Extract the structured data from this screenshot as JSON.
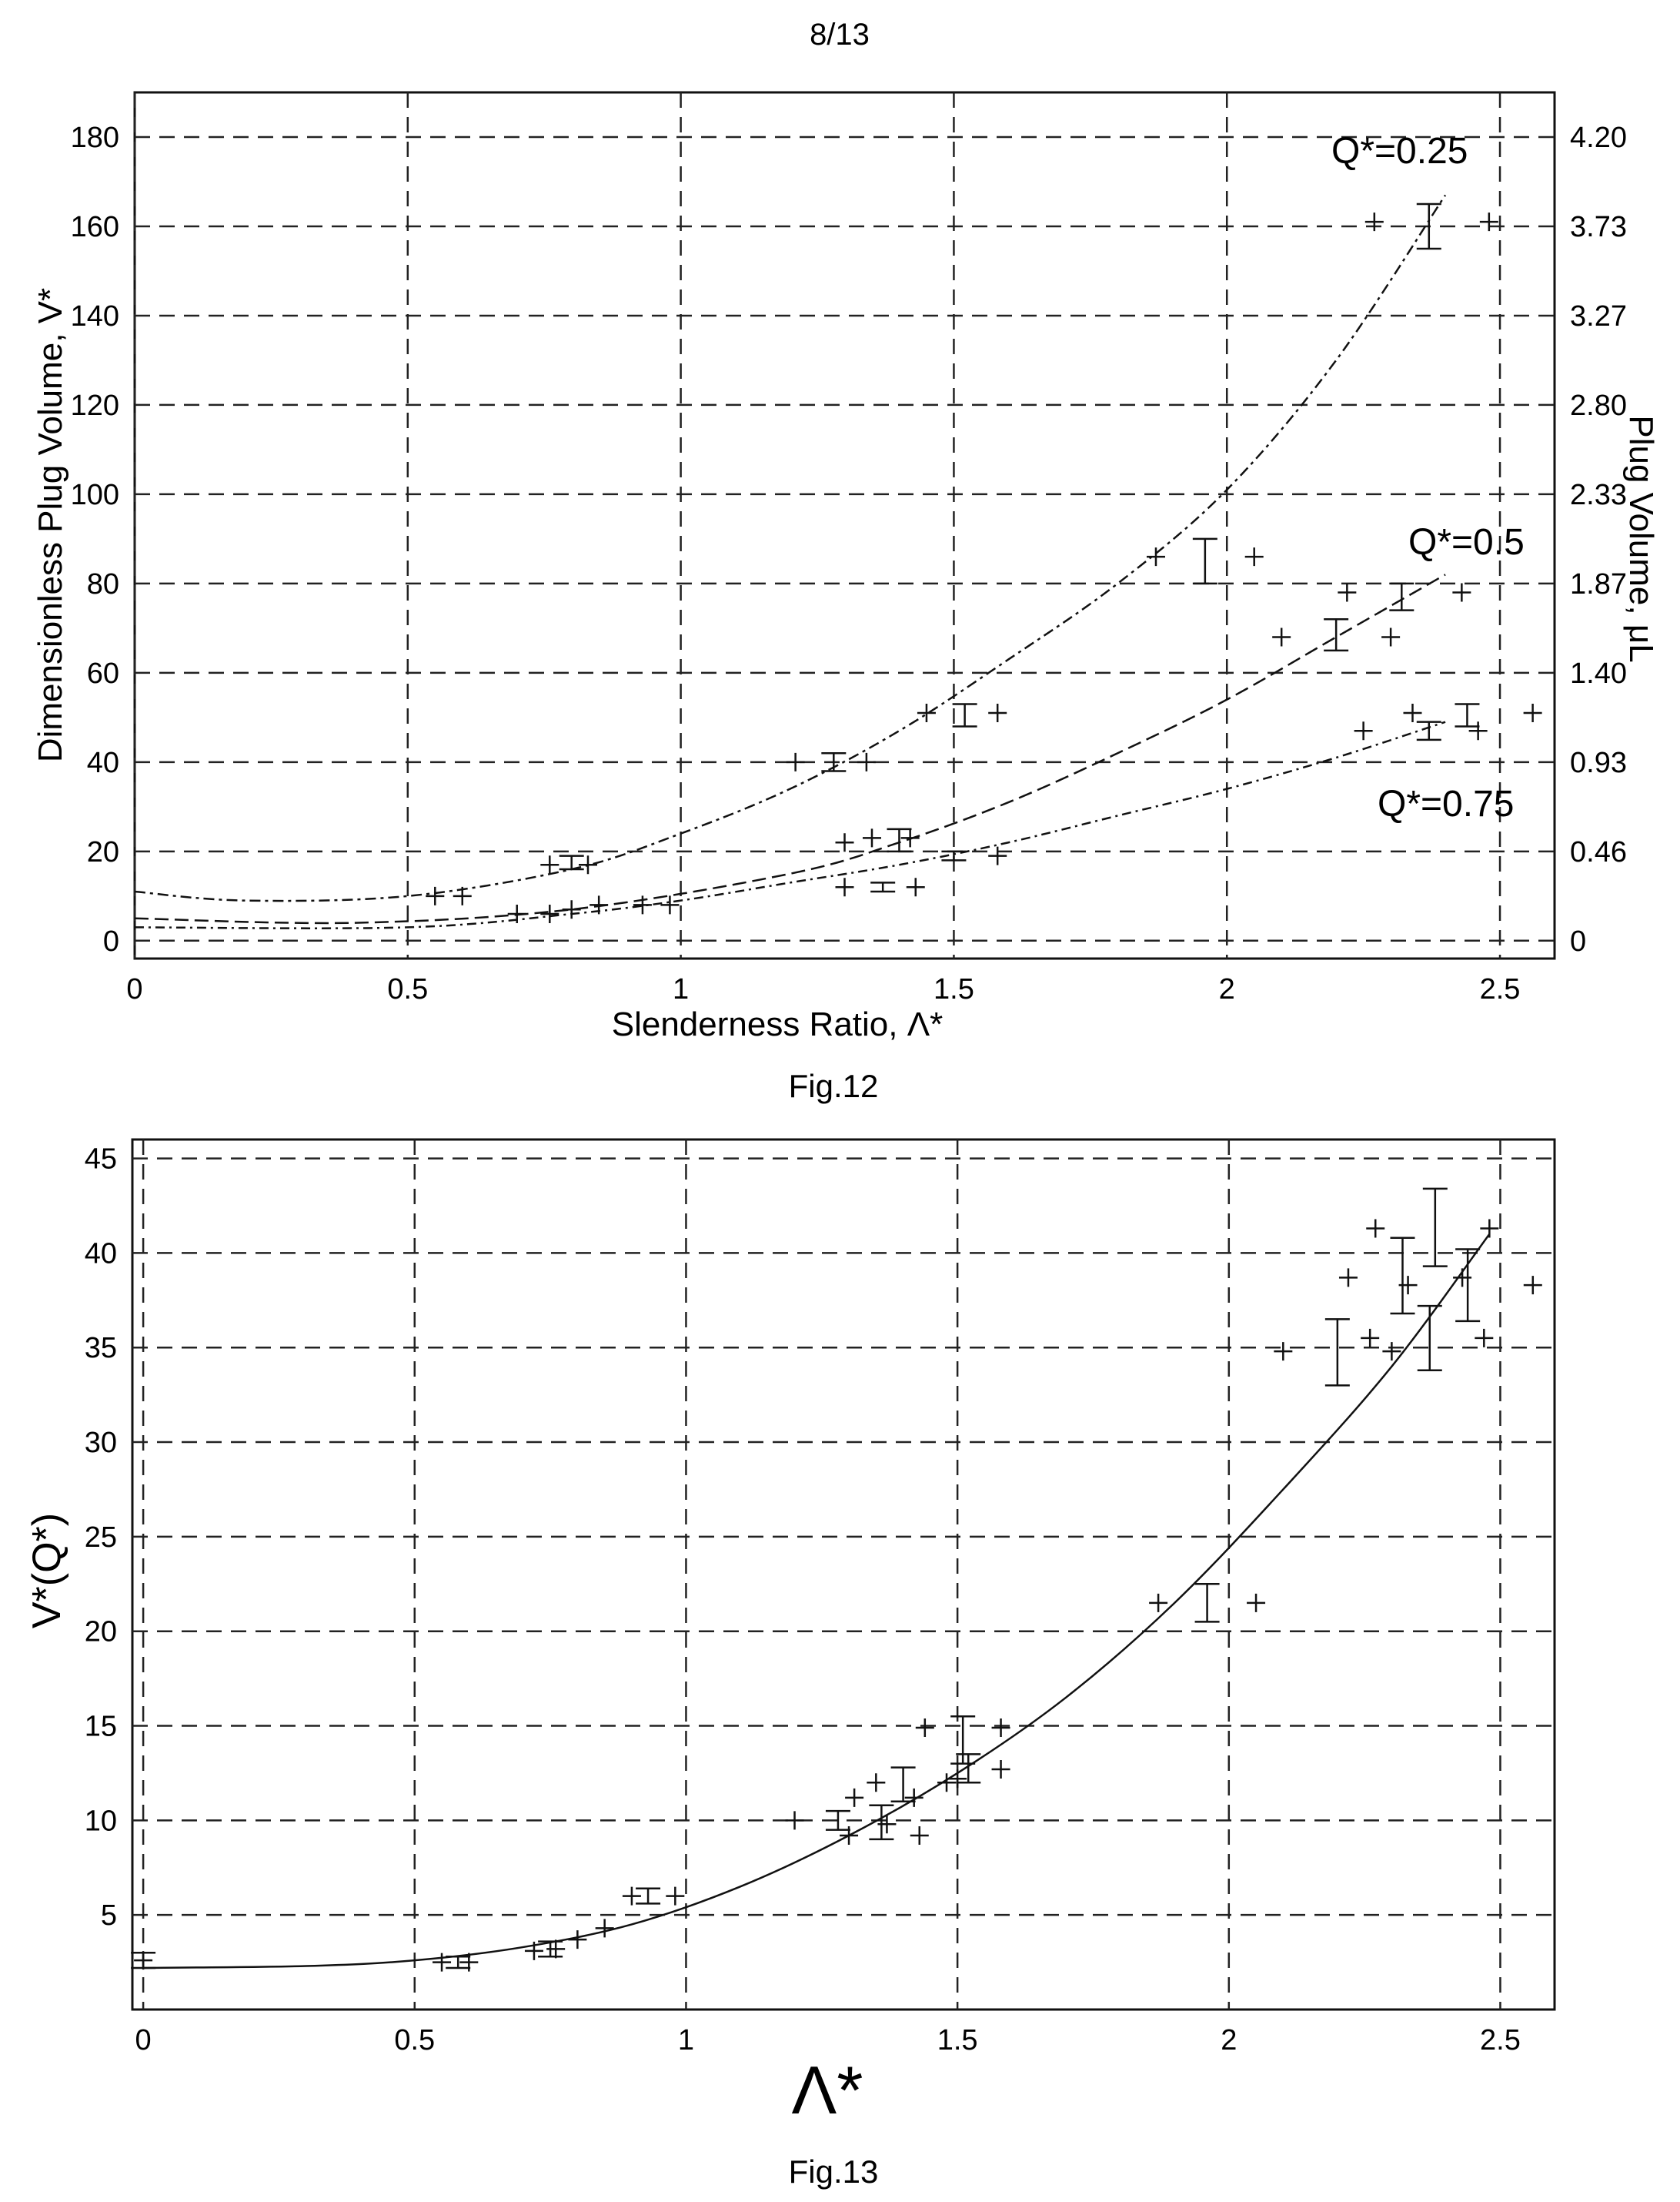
{
  "page_number": "8/13",
  "chart_data": [
    {
      "figure": "Fig.12",
      "type": "scatter",
      "title": "",
      "xlabel": "Slenderness Ratio, Λ*",
      "ylabel": "Dimensionless Plug Volume, V*",
      "y2label": "Plug Volume, μL",
      "xlim": [
        0,
        2.6
      ],
      "ylim": [
        -4,
        190
      ],
      "xticks": [
        "0",
        "0.5",
        "1",
        "1.5",
        "2",
        "2.5"
      ],
      "yticks": [
        "0",
        "20",
        "40",
        "60",
        "80",
        "100",
        "120",
        "140",
        "160",
        "180"
      ],
      "y2ticks": [
        "0",
        "0.46",
        "0.93",
        "1.40",
        "1.87",
        "2.33",
        "2.80",
        "3.27",
        "3.73",
        "4.20"
      ],
      "grid": true,
      "series": [
        {
          "name": "Q*=0.25",
          "fit": {
            "x": [
              0,
              0.2,
              0.5,
              0.8,
              1.0,
              1.2,
              1.4,
              1.6,
              1.8,
              2.0,
              2.2,
              2.4
            ],
            "y": [
              11,
              9,
              10,
              16,
              24,
              34,
              47,
              63,
              80,
              101,
              130,
              167
            ]
          },
          "points": [
            {
              "x": 0.55,
              "y": 10
            },
            {
              "x": 0.6,
              "y": 10
            },
            {
              "x": 0.76,
              "y": 17
            },
            {
              "x": 0.83,
              "y": 17
            },
            {
              "x": 1.21,
              "y": 40
            },
            {
              "x": 1.34,
              "y": 40
            },
            {
              "x": 1.45,
              "y": 51
            },
            {
              "x": 1.58,
              "y": 51
            },
            {
              "x": 1.87,
              "y": 86
            },
            {
              "x": 2.05,
              "y": 86
            },
            {
              "x": 2.27,
              "y": 161
            },
            {
              "x": 2.48,
              "y": 161
            }
          ],
          "errorbars": [
            {
              "x": 0.8,
              "low": 16,
              "high": 19
            },
            {
              "x": 1.28,
              "low": 38,
              "high": 42
            },
            {
              "x": 1.52,
              "low": 48,
              "high": 53
            },
            {
              "x": 1.96,
              "low": 80,
              "high": 90
            },
            {
              "x": 2.37,
              "low": 155,
              "high": 165
            }
          ]
        },
        {
          "name": "Q*=0.5",
          "fit": {
            "x": [
              0,
              0.4,
              0.8,
              1.2,
              1.4,
              1.6,
              1.8,
              2.0,
              2.2,
              2.4
            ],
            "y": [
              5,
              4,
              7,
              15,
              22,
              31,
              42,
              54,
              68,
              82
            ]
          },
          "points": [
            {
              "x": 0.7,
              "y": 6
            },
            {
              "x": 0.76,
              "y": 6
            },
            {
              "x": 0.8,
              "y": 7
            },
            {
              "x": 1.3,
              "y": 22
            },
            {
              "x": 1.35,
              "y": 23
            },
            {
              "x": 1.42,
              "y": 23
            },
            {
              "x": 2.1,
              "y": 68
            },
            {
              "x": 2.22,
              "y": 78
            },
            {
              "x": 2.3,
              "y": 68
            },
            {
              "x": 2.43,
              "y": 78
            }
          ],
          "errorbars": [
            {
              "x": 1.4,
              "low": 20,
              "high": 25
            },
            {
              "x": 2.2,
              "low": 65,
              "high": 72
            },
            {
              "x": 2.32,
              "low": 74,
              "high": 80
            }
          ]
        },
        {
          "name": "Q*=0.75",
          "fit": {
            "x": [
              0,
              0.5,
              0.8,
              1.0,
              1.2,
              1.4,
              1.6,
              1.8,
              2.0,
              2.2,
              2.4
            ],
            "y": [
              3,
              3,
              6,
              9,
              13,
              17,
              22,
              28,
              34,
              41,
              49
            ]
          },
          "points": [
            {
              "x": 0.85,
              "y": 8
            },
            {
              "x": 0.93,
              "y": 8
            },
            {
              "x": 0.98,
              "y": 8
            },
            {
              "x": 1.3,
              "y": 12
            },
            {
              "x": 1.43,
              "y": 12
            },
            {
              "x": 1.58,
              "y": 19
            },
            {
              "x": 2.25,
              "y": 47
            },
            {
              "x": 2.34,
              "y": 51
            },
            {
              "x": 2.46,
              "y": 47
            },
            {
              "x": 2.56,
              "y": 51
            }
          ],
          "errorbars": [
            {
              "x": 1.37,
              "low": 11,
              "high": 13
            },
            {
              "x": 1.5,
              "low": 18,
              "high": 20
            },
            {
              "x": 2.37,
              "low": 45,
              "high": 49
            },
            {
              "x": 2.44,
              "low": 48,
              "high": 53
            }
          ]
        }
      ]
    },
    {
      "figure": "Fig.13",
      "type": "scatter",
      "title": "",
      "xlabel": "Λ*",
      "ylabel": "V*(Q*)",
      "xlim": [
        -0.02,
        2.6
      ],
      "ylim": [
        0,
        46
      ],
      "xticks": [
        "0",
        "0.5",
        "1",
        "1.5",
        "2",
        "2.5"
      ],
      "yticks": [
        "5",
        "10",
        "15",
        "20",
        "25",
        "30",
        "35",
        "40",
        "45"
      ],
      "grid": true,
      "fit": {
        "x": [
          0,
          0.3,
          0.5,
          0.7,
          0.9,
          1.1,
          1.3,
          1.5,
          1.7,
          1.9,
          2.1,
          2.3,
          2.48
        ],
        "y": [
          2.2,
          2.3,
          2.6,
          3.3,
          4.5,
          6.5,
          9.2,
          12.5,
          16.5,
          21.5,
          27.5,
          34,
          41
        ]
      },
      "points": [
        {
          "x": 0,
          "y": 2.6
        },
        {
          "x": 0.55,
          "y": 2.5
        },
        {
          "x": 0.6,
          "y": 2.5
        },
        {
          "x": 0.72,
          "y": 3.1
        },
        {
          "x": 0.76,
          "y": 3.2
        },
        {
          "x": 0.8,
          "y": 3.7
        },
        {
          "x": 0.85,
          "y": 4.3
        },
        {
          "x": 0.9,
          "y": 6
        },
        {
          "x": 0.98,
          "y": 6
        },
        {
          "x": 1.2,
          "y": 10
        },
        {
          "x": 1.3,
          "y": 9.2
        },
        {
          "x": 1.31,
          "y": 11.2
        },
        {
          "x": 1.35,
          "y": 12
        },
        {
          "x": 1.37,
          "y": 9.8
        },
        {
          "x": 1.42,
          "y": 11.2
        },
        {
          "x": 1.43,
          "y": 9.2
        },
        {
          "x": 1.44,
          "y": 14.9
        },
        {
          "x": 1.48,
          "y": 12
        },
        {
          "x": 1.5,
          "y": 12.2
        },
        {
          "x": 1.58,
          "y": 12.7
        },
        {
          "x": 1.58,
          "y": 14.9
        },
        {
          "x": 1.87,
          "y": 21.5
        },
        {
          "x": 2.05,
          "y": 21.5
        },
        {
          "x": 2.1,
          "y": 34.8
        },
        {
          "x": 2.22,
          "y": 38.7
        },
        {
          "x": 2.26,
          "y": 35.5
        },
        {
          "x": 2.27,
          "y": 41.3
        },
        {
          "x": 2.3,
          "y": 34.8
        },
        {
          "x": 2.33,
          "y": 38.3
        },
        {
          "x": 2.43,
          "y": 38.7
        },
        {
          "x": 2.47,
          "y": 35.5
        },
        {
          "x": 2.48,
          "y": 41.3
        },
        {
          "x": 2.56,
          "y": 38.3
        }
      ],
      "errorbars": [
        {
          "x": 0,
          "low": 2.2,
          "high": 3.0
        },
        {
          "x": 0.58,
          "low": 2.2,
          "high": 2.8
        },
        {
          "x": 0.75,
          "low": 2.8,
          "high": 3.6
        },
        {
          "x": 0.93,
          "low": 5.6,
          "high": 6.4
        },
        {
          "x": 1.28,
          "low": 9.5,
          "high": 10.5
        },
        {
          "x": 1.36,
          "low": 9.0,
          "high": 10.8
        },
        {
          "x": 1.4,
          "low": 11.0,
          "high": 12.8
        },
        {
          "x": 1.51,
          "low": 13.0,
          "high": 15.5
        },
        {
          "x": 1.52,
          "low": 12.0,
          "high": 13.5
        },
        {
          "x": 1.96,
          "low": 20.5,
          "high": 22.5
        },
        {
          "x": 2.2,
          "low": 33,
          "high": 36.5
        },
        {
          "x": 2.32,
          "low": 36.8,
          "high": 40.8
        },
        {
          "x": 2.37,
          "low": 33.8,
          "high": 37.2
        },
        {
          "x": 2.38,
          "low": 39.3,
          "high": 43.4
        },
        {
          "x": 2.44,
          "low": 36.4,
          "high": 40.2
        }
      ]
    }
  ]
}
